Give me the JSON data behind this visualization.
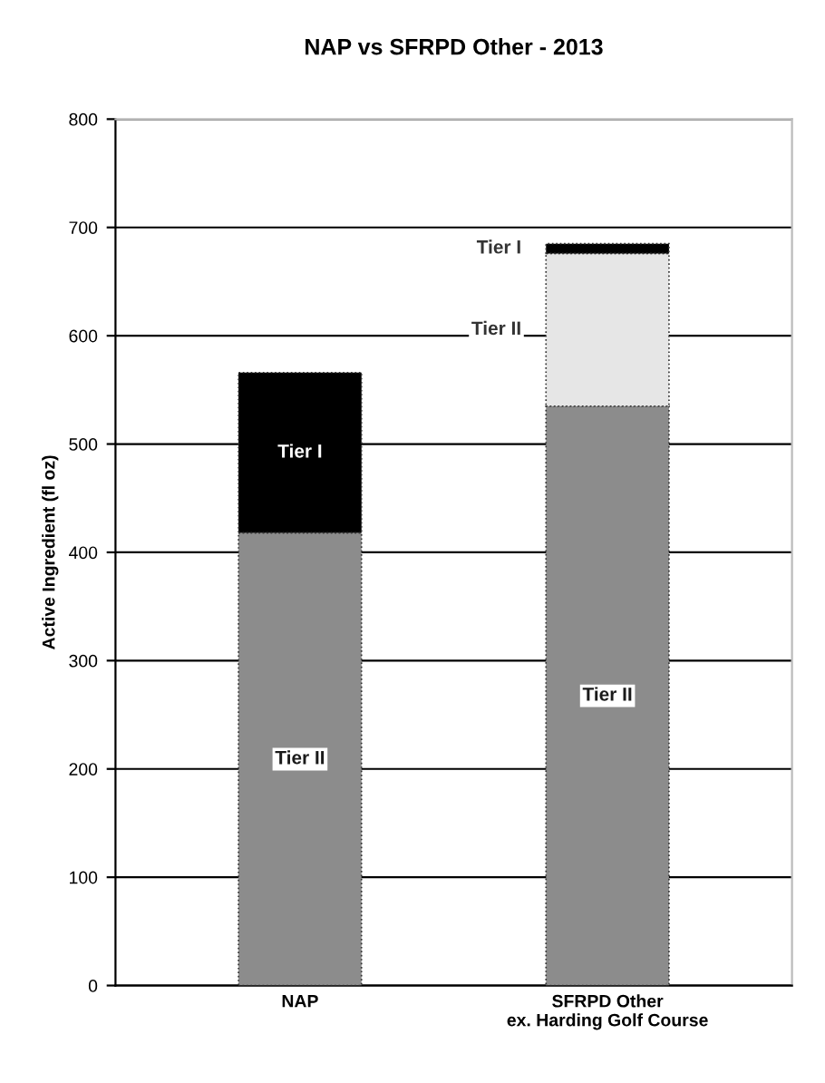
{
  "chart_data": {
    "type": "bar",
    "title": "NAP vs SFRPD Other - 2013",
    "ylabel": "Active Ingredient (fl oz)",
    "categories": [
      "NAP",
      "SFRPD Other\nex. Harding Golf Course"
    ],
    "stacked": true,
    "series": [
      {
        "name": "Tier II",
        "color": "#8c8c8c",
        "values": [
          418,
          535
        ]
      },
      {
        "name": "Tier II",
        "color": "#e6e6e6",
        "values": [
          null,
          141
        ]
      },
      {
        "name": "Tier I",
        "color": "#000000",
        "values": [
          148,
          9
        ]
      }
    ],
    "ylim": [
      0,
      800
    ],
    "yticks": [
      0,
      100,
      200,
      300,
      400,
      500,
      600,
      700,
      800
    ],
    "grid": "y"
  }
}
